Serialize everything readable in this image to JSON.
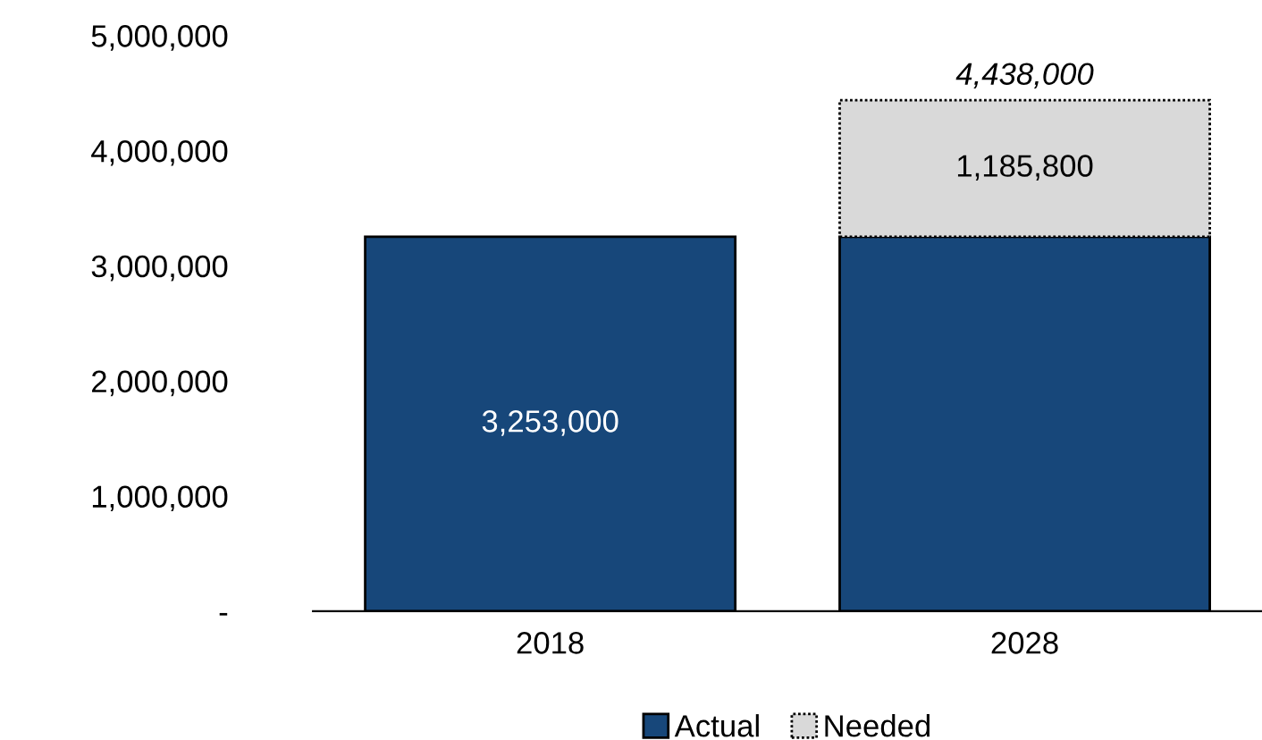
{
  "chart_data": {
    "type": "bar",
    "stacked": true,
    "categories": [
      "2018",
      "2028"
    ],
    "series": [
      {
        "name": "Actual",
        "color": "#17477a",
        "values": [
          3253000,
          3252200
        ],
        "value_labels": [
          "3,253,000",
          null
        ]
      },
      {
        "name": "Needed",
        "color": "#d9d9d9",
        "values": [
          null,
          1185800
        ],
        "value_labels": [
          null,
          "1,185,800"
        ]
      }
    ],
    "totals": [
      null,
      "4,438,000"
    ],
    "ylim": [
      0,
      5000000
    ],
    "yticks": [
      {
        "value": 0,
        "label": "-"
      },
      {
        "value": 1000000,
        "label": "1,000,000"
      },
      {
        "value": 2000000,
        "label": "2,000,000"
      },
      {
        "value": 3000000,
        "label": "3,000,000"
      },
      {
        "value": 4000000,
        "label": "4,000,000"
      },
      {
        "value": 5000000,
        "label": "5,000,000"
      }
    ],
    "grid": false,
    "legend": "bottom"
  }
}
